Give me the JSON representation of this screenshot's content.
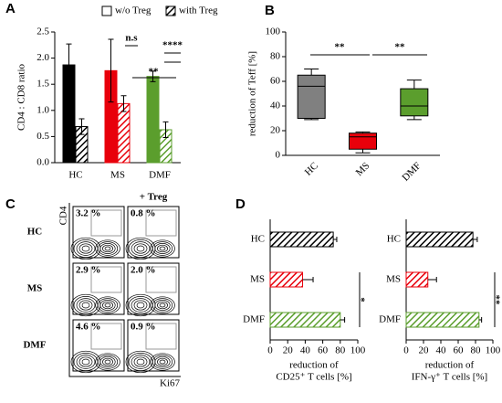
{
  "panels": [
    "A",
    "B",
    "C",
    "D"
  ],
  "chart_data": [
    {
      "type": "bar",
      "categories": [
        "HC",
        "MS",
        "DMF"
      ],
      "colors": [
        "#000000",
        "#e8000b",
        "#5b9e2d"
      ],
      "ylabel": "CD4 : CD8 ratio",
      "ylim": [
        0,
        2.5
      ],
      "yticks": [
        {
          "value": 0,
          "label": "0.0"
        },
        0.5,
        {
          "value": 1,
          "label": "1.0"
        },
        1.5,
        {
          "value": 2,
          "label": "2.0"
        },
        2.5
      ],
      "series": [
        {
          "name": "w/o Treg",
          "values": [
            1.87,
            1.76,
            1.65
          ],
          "errors": [
            0.4,
            0.6,
            0.1
          ]
        },
        {
          "name": "with Treg",
          "hatch": true,
          "values": [
            0.69,
            1.13,
            0.63
          ],
          "errors": [
            0.15,
            0.15,
            0.15
          ]
        }
      ],
      "annotations": [
        "n.s",
        "**",
        "****"
      ]
    },
    {
      "type": "box",
      "categories": [
        "HC",
        "MS",
        "DMF"
      ],
      "colors": [
        "#808080",
        "#e8000b",
        "#5b9e2d"
      ],
      "ylabel": "reduction of Teff [%]",
      "ylim": [
        0,
        100
      ],
      "yticks": [
        0,
        20,
        40,
        60,
        80,
        100
      ],
      "min": [
        29,
        2,
        29
      ],
      "q1": [
        30,
        5,
        32
      ],
      "median": [
        56,
        15,
        40
      ],
      "q3": [
        65,
        18,
        54
      ],
      "max": [
        70,
        19,
        61
      ],
      "annotations": [
        "**",
        "**"
      ]
    },
    {
      "type": "hbar",
      "categories": [
        "HC",
        "MS",
        "DMF"
      ],
      "colors": [
        "#000000",
        "#e8000b",
        "#5b9e2d"
      ],
      "values": [
        72,
        37,
        80
      ],
      "errors": [
        4,
        12,
        5
      ],
      "xlim": [
        0,
        100
      ],
      "xticks": [
        0,
        20,
        40,
        60,
        80,
        100
      ],
      "xlabel": [
        "reduction of",
        "CD25⁺ T cells [%]"
      ],
      "annotations": [
        "*"
      ]
    },
    {
      "type": "hbar",
      "categories": [
        "HC",
        "MS",
        "DMF"
      ],
      "colors": [
        "#000000",
        "#e8000b",
        "#5b9e2d"
      ],
      "values": [
        77,
        25,
        84
      ],
      "errors": [
        5,
        10,
        3
      ],
      "xlim": [
        0,
        100
      ],
      "xticks": [
        0,
        20,
        40,
        60,
        80,
        100
      ],
      "xlabel": [
        "reduction of",
        "IFN-γ⁺ T cells [%]"
      ],
      "annotations": [
        "**"
      ]
    }
  ],
  "flow": {
    "rows": [
      "HC",
      "MS",
      "DMF"
    ],
    "column_label": "+ Treg",
    "y_label": "CD4",
    "x_label": "Ki67",
    "percentages": [
      [
        "3.2 %",
        "0.8 %"
      ],
      [
        "2.9 %",
        "2.0 %"
      ],
      [
        "4.6 %",
        "0.9 %"
      ]
    ]
  }
}
